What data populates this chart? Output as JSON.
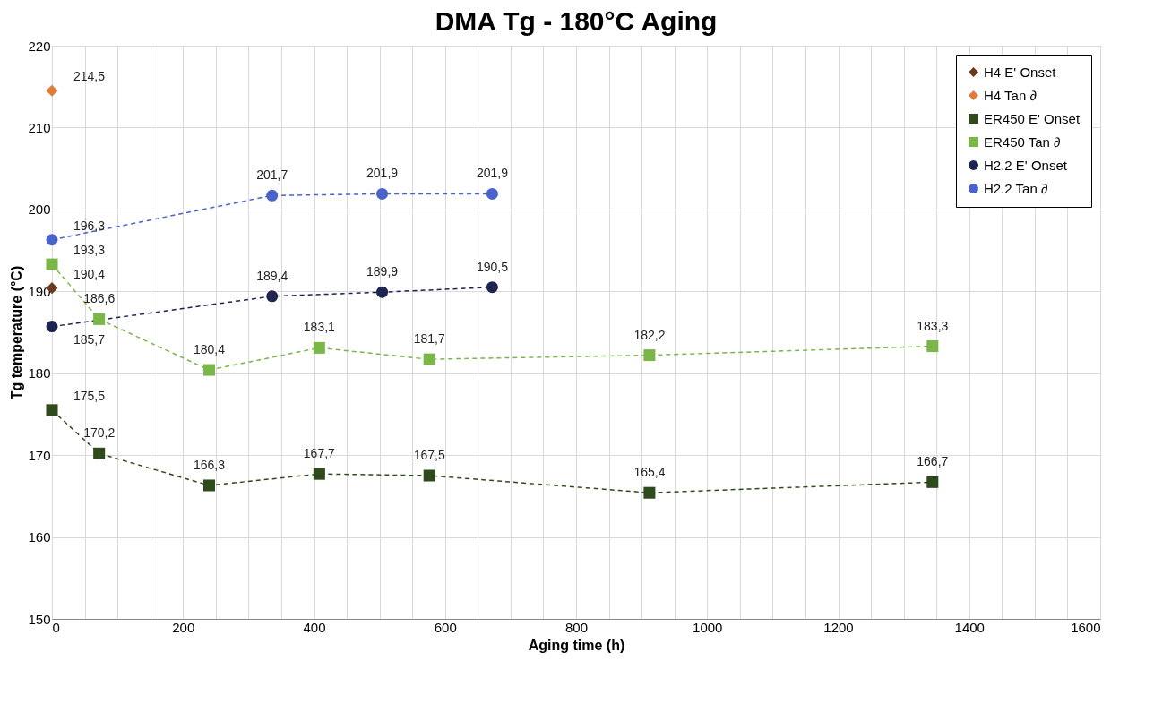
{
  "chart_data": {
    "type": "line",
    "title": "DMA Tg - 180°C Aging",
    "xlabel": "Aging time (h)",
    "ylabel": "Tg temperature (°C)",
    "xlim": [
      0,
      1600
    ],
    "xticks": [
      0,
      {
        "value": 50,
        "label": null
      },
      {
        "value": 100,
        "label": null
      },
      {
        "value": 150,
        "label": null
      },
      200,
      {
        "value": 250,
        "label": null
      },
      {
        "value": 300,
        "label": null
      },
      {
        "value": 350,
        "label": null
      },
      400,
      {
        "value": 450,
        "label": null
      },
      {
        "value": 500,
        "label": null
      },
      {
        "value": 550,
        "label": null
      },
      600,
      {
        "value": 650,
        "label": null
      },
      {
        "value": 700,
        "label": null
      },
      {
        "value": 750,
        "label": null
      },
      800,
      {
        "value": 850,
        "label": null
      },
      {
        "value": 900,
        "label": null
      },
      {
        "value": 950,
        "label": null
      },
      1000,
      {
        "value": 1050,
        "label": null
      },
      {
        "value": 1100,
        "label": null
      },
      {
        "value": 1150,
        "label": null
      },
      1200,
      {
        "value": 1250,
        "label": null
      },
      {
        "value": 1300,
        "label": null
      },
      {
        "value": 1350,
        "label": null
      },
      1400,
      {
        "value": 1450,
        "label": null
      },
      {
        "value": 1500,
        "label": null
      },
      {
        "value": 1550,
        "label": null
      },
      1600
    ],
    "ylim": [
      150,
      220
    ],
    "yticks": [
      150,
      160,
      170,
      180,
      190,
      200,
      210,
      220
    ],
    "grid": true,
    "legend": "top right",
    "data_labels": true,
    "series": [
      {
        "name": "H4 E' Onset",
        "type": "scatter",
        "marker": "diamond",
        "color": "#6b3a1e",
        "x": [
          0
        ],
        "values": [
          190.4
        ],
        "value_labels": [
          "190,4"
        ]
      },
      {
        "name": "H4 Tan ∂",
        "type": "scatter",
        "marker": "diamond",
        "color": "#e07b39",
        "x": [
          0
        ],
        "values": [
          214.5
        ],
        "value_labels": [
          "214,5"
        ]
      },
      {
        "name": "ER450 E' Onset",
        "type": "line",
        "marker": "square",
        "line_style": "dashed",
        "color": "#2f4a1c",
        "x": [
          0,
          72,
          240,
          408,
          576,
          912,
          1344
        ],
        "values": [
          175.5,
          170.2,
          166.3,
          167.7,
          167.5,
          165.4,
          166.7
        ],
        "value_labels": [
          "175,5",
          "170,2",
          "166,3",
          "167,7",
          "167,5",
          "165,4",
          "166,7"
        ]
      },
      {
        "name": "ER450 Tan ∂",
        "type": "line",
        "marker": "square",
        "line_style": "dashed",
        "color": "#7ab648",
        "x": [
          0,
          72,
          240,
          408,
          576,
          912,
          1344
        ],
        "values": [
          193.3,
          186.6,
          180.4,
          183.1,
          181.7,
          182.2,
          183.3
        ],
        "value_labels": [
          "193,3",
          "186,6",
          "180,4",
          "183,1",
          "181,7",
          "182,2",
          "183,3"
        ]
      },
      {
        "name": "H2.2 E' Onset",
        "type": "line",
        "marker": "circle",
        "line_style": "dashed",
        "color": "#1e2450",
        "x": [
          0,
          336,
          504,
          672
        ],
        "values": [
          185.7,
          189.4,
          189.9,
          190.5
        ],
        "value_labels": [
          "185,7",
          "189,4",
          "189,9",
          "190,5"
        ]
      },
      {
        "name": "H2.2 Tan ∂",
        "type": "line",
        "marker": "circle",
        "line_style": "dashed",
        "color": "#4a63c9",
        "x": [
          0,
          336,
          504,
          672
        ],
        "values": [
          196.3,
          201.7,
          201.9,
          201.9
        ],
        "value_labels": [
          "196,3",
          "201,7",
          "201,9",
          "201,9"
        ]
      }
    ]
  }
}
